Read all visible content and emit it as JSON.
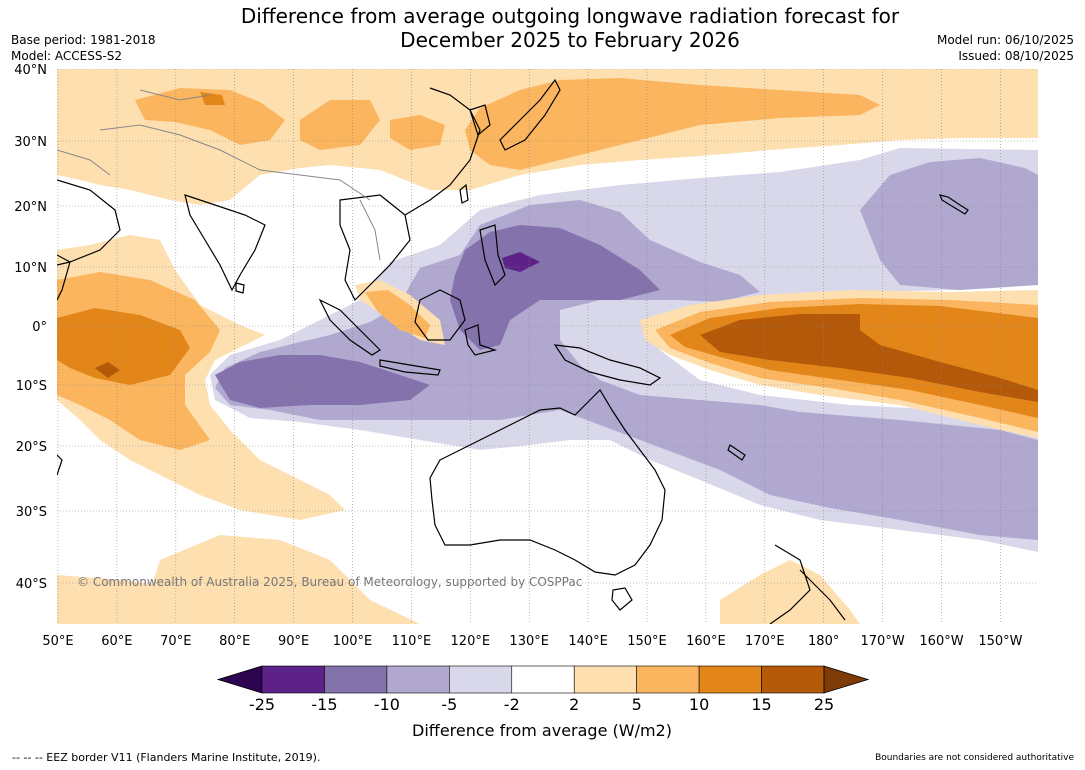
{
  "header": {
    "title_line1": "Difference from average outgoing longwave radiation forecast for",
    "title_line2": "December 2025 to February 2026",
    "base_period": "Base period: 1981-2018",
    "model": "Model: ACCESS-S2",
    "model_run": "Model run: 06/10/2025",
    "issued": "Issued: 08/10/2025"
  },
  "map": {
    "lon_labels": [
      "50°E",
      "60°E",
      "70°E",
      "80°E",
      "90°E",
      "100°E",
      "110°E",
      "120°E",
      "130°E",
      "140°E",
      "150°E",
      "160°E",
      "170°E",
      "180°",
      "170°W",
      "160°W",
      "150°W"
    ],
    "lat_labels": [
      "40°N",
      "30°N",
      "20°N",
      "10°N",
      "0°",
      "10°S",
      "20°S",
      "30°S",
      "40°S"
    ],
    "copyright": "© Commonwealth of Australia 2025, Bureau of Meteorology, supported by COSPPac"
  },
  "colorbar": {
    "ticks": [
      "-25",
      "-15",
      "-10",
      "-5",
      "-2",
      "2",
      "5",
      "10",
      "15",
      "25"
    ],
    "colors": [
      "#5c2287",
      "#8372ab",
      "#b1a8cf",
      "#d8d8ea",
      "#ffffff",
      "#fedfb0",
      "#fab55e",
      "#e28619",
      "#b45909"
    ],
    "low_extend_color": "#2d0450",
    "high_extend_color": "#7f3b07",
    "label": "Difference from average (W/m2)"
  },
  "footer": {
    "eez_note": "--  --  -- EEZ border V11 (Flanders Marine Institute, 2019).",
    "boundaries_note": "Boundaries are not considered authoritative"
  }
}
